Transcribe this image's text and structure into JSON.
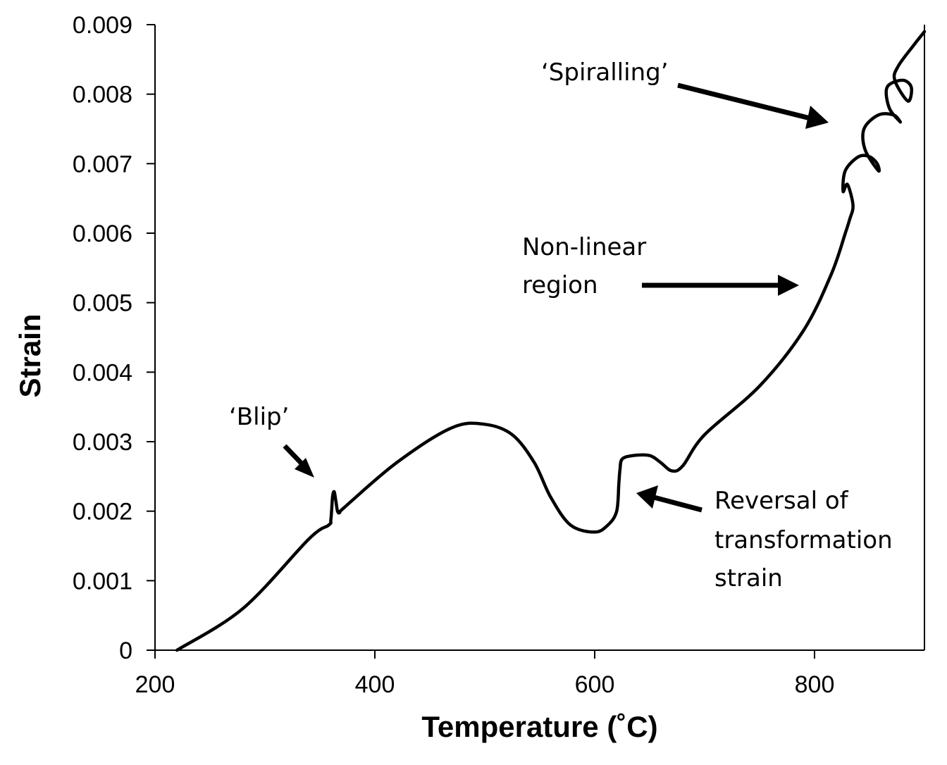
{
  "chart_data": {
    "type": "line",
    "title": "",
    "xlabel": "Temperature (˚C)",
    "ylabel": "Strain",
    "xlim": [
      200,
      900
    ],
    "ylim": [
      0,
      0.009
    ],
    "xticks": [
      200,
      400,
      600,
      800
    ],
    "yticks": [
      0,
      0.001,
      0.002,
      0.003,
      0.004,
      0.005,
      0.006,
      0.007,
      0.008,
      0.009
    ],
    "xtick_labels": [
      "200",
      "400",
      "600",
      "800"
    ],
    "ytick_labels": [
      "0",
      "0.001",
      "0.002",
      "0.003",
      "0.004",
      "0.005",
      "0.006",
      "0.007",
      "0.008",
      "0.009"
    ],
    "grid": false,
    "legend": "none",
    "series": [
      {
        "x": [
          220,
          280,
          340,
          358,
          360,
          361.5,
          363,
          364.5,
          366,
          368,
          372,
          420,
          470,
          500,
          525,
          545,
          560,
          578,
          600,
          612,
          620,
          622,
          623,
          625,
          635,
          650,
          660,
          670,
          680,
          700,
          750,
          790,
          815,
          828,
          832,
          835,
          830,
          826,
          828,
          840,
          850,
          857,
          858,
          846,
          845,
          858,
          872,
          878,
          868,
          866,
          880,
          888,
          885,
          873,
          876,
          890,
          900
        ],
        "y": [
          0,
          0.0006,
          0.0016,
          0.0018,
          0.00188,
          0.0022,
          0.00228,
          0.00215,
          0.002,
          0.00198,
          0.00205,
          0.0027,
          0.0032,
          0.00325,
          0.0031,
          0.0027,
          0.0022,
          0.0018,
          0.0017,
          0.0018,
          0.002,
          0.0024,
          0.0026,
          0.00275,
          0.0028,
          0.0028,
          0.0027,
          0.00258,
          0.00265,
          0.0031,
          0.0038,
          0.0046,
          0.0054,
          0.006,
          0.0062,
          0.0064,
          0.0067,
          0.0066,
          0.0069,
          0.0071,
          0.0071,
          0.007,
          0.0069,
          0.0072,
          0.0075,
          0.0077,
          0.0077,
          0.0076,
          0.0078,
          0.0081,
          0.0082,
          0.0081,
          0.0079,
          0.0082,
          0.0084,
          0.0087,
          0.0089
        ]
      }
    ],
    "annotations": [
      {
        "text": "‘Blip’",
        "arrow_to": [
          362,
          0.0025
        ]
      },
      {
        "text": "‘Spiralling’",
        "arrow_to": [
          840,
          0.0075
        ]
      },
      {
        "text": "Non-linear region",
        "lines": [
          "Non-linear",
          "region"
        ],
        "arrow_to": [
          785,
          0.0052
        ]
      },
      {
        "text": "Reversal of transformation strain",
        "lines": [
          "Reversal of",
          "transformation",
          "strain"
        ],
        "arrow_to": [
          637,
          0.00225
        ]
      }
    ]
  }
}
